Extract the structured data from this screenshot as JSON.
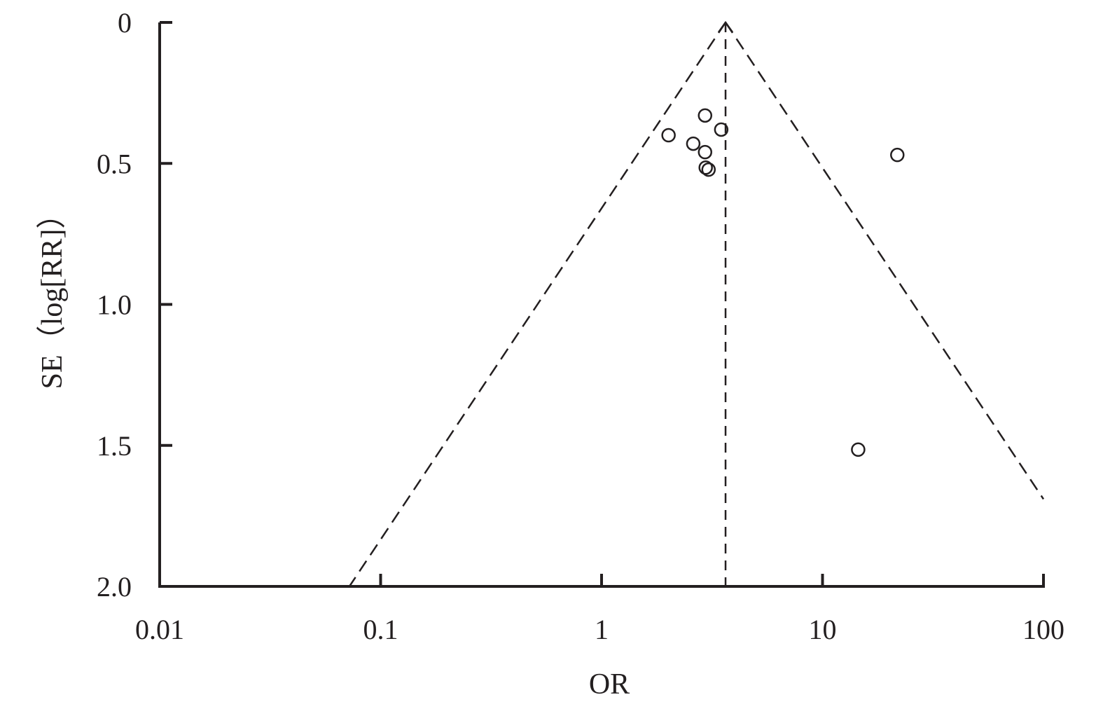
{
  "chart_data": {
    "type": "scatter",
    "xlabel": "OR",
    "ylabel": "SE（log[RR]）",
    "xscale": "log",
    "xlim": [
      0.01,
      100
    ],
    "ylim": [
      0,
      2.0
    ],
    "y_inverted": true,
    "xticks": [
      "0.01",
      "0.1",
      "1",
      "10",
      "100"
    ],
    "yticks": [
      "0",
      "0.5",
      "1.0",
      "1.5",
      "2.0"
    ],
    "grid": false,
    "pooled_or": 3.64,
    "funnel_limits": "pooled ± 1.96·SE",
    "points": [
      {
        "or": 2.01,
        "se": 0.4
      },
      {
        "or": 2.94,
        "se": 0.33
      },
      {
        "or": 3.48,
        "se": 0.38
      },
      {
        "or": 2.6,
        "se": 0.43
      },
      {
        "or": 2.94,
        "se": 0.46
      },
      {
        "or": 2.96,
        "se": 0.515
      },
      {
        "or": 3.05,
        "se": 0.522
      },
      {
        "or": 21.8,
        "se": 0.47
      },
      {
        "or": 14.5,
        "se": 1.515
      }
    ],
    "colors": {
      "ink": "#231f20"
    }
  }
}
